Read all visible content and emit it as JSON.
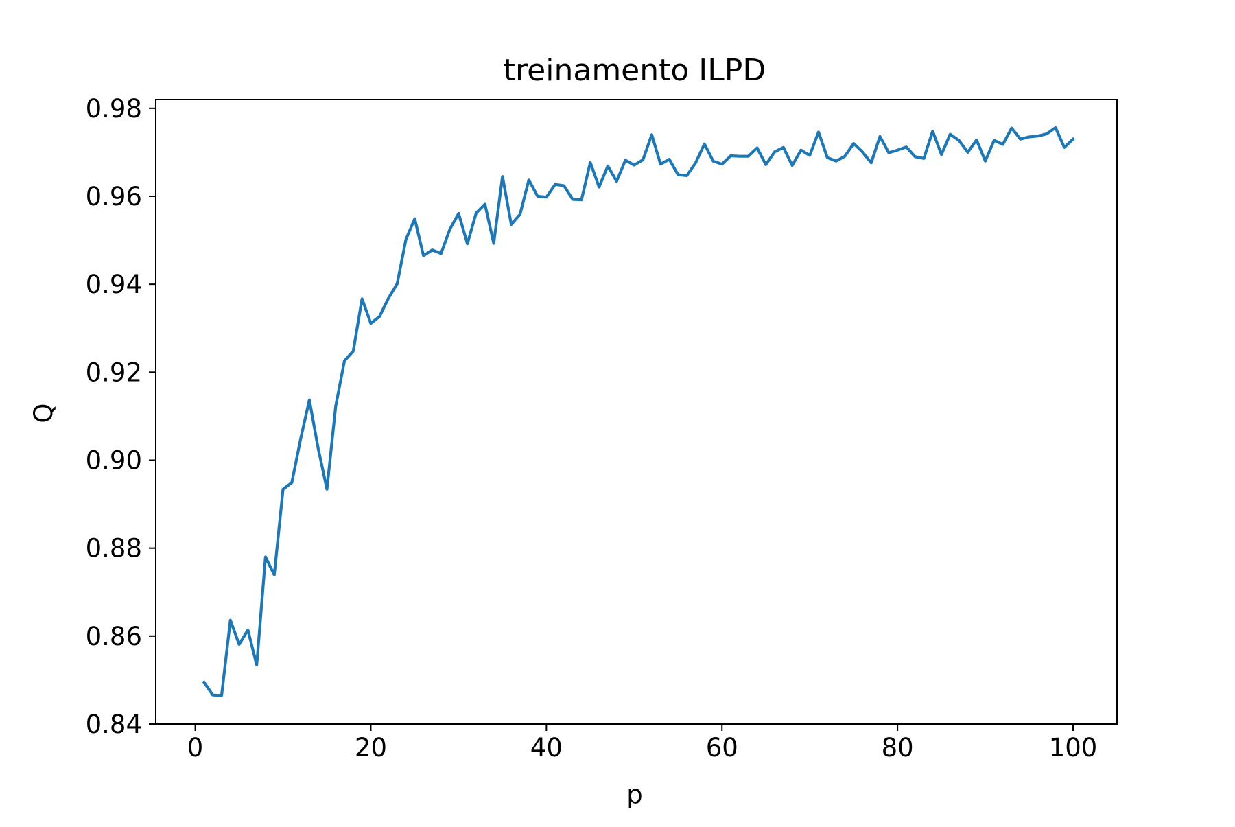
{
  "chart_data": {
    "type": "line",
    "title": "treinamento ILPD",
    "xlabel": "p",
    "ylabel": "Q",
    "xlim": [
      -4.5,
      105
    ],
    "ylim": [
      0.84,
      0.982
    ],
    "xticks": [
      0,
      20,
      40,
      60,
      80,
      100
    ],
    "xtick_labels": [
      "0",
      "20",
      "40",
      "60",
      "80",
      "100"
    ],
    "yticks": [
      0.84,
      0.86,
      0.88,
      0.9,
      0.92,
      0.94,
      0.96,
      0.98
    ],
    "ytick_labels": [
      "0.84",
      "0.86",
      "0.88",
      "0.90",
      "0.92",
      "0.94",
      "0.96",
      "0.98"
    ],
    "grid": false,
    "series": [
      {
        "color": "#1f77b4",
        "x": [
          1,
          2,
          3,
          4,
          5,
          6,
          7,
          8,
          9,
          10,
          11,
          12,
          13,
          14,
          15,
          16,
          17,
          18,
          19,
          20,
          21,
          22,
          23,
          24,
          25,
          26,
          27,
          28,
          29,
          30,
          31,
          32,
          33,
          34,
          35,
          36,
          37,
          38,
          39,
          40,
          41,
          42,
          43,
          44,
          45,
          46,
          47,
          48,
          49,
          50,
          51,
          52,
          53,
          54,
          55,
          56,
          57,
          58,
          59,
          60,
          61,
          62,
          63,
          64,
          65,
          66,
          67,
          68,
          69,
          70,
          71,
          72,
          73,
          74,
          75,
          76,
          77,
          78,
          79,
          80,
          81,
          82,
          83,
          84,
          85,
          86,
          87,
          88,
          89,
          90,
          91,
          92,
          93,
          94,
          95,
          96,
          97,
          98,
          99,
          100
        ],
        "y": [
          0.8495,
          0.8466,
          0.8465,
          0.8636,
          0.8581,
          0.8614,
          0.8534,
          0.878,
          0.8739,
          0.8934,
          0.8949,
          0.9048,
          0.9137,
          0.9027,
          0.8934,
          0.9123,
          0.9226,
          0.9248,
          0.9367,
          0.9311,
          0.9327,
          0.9368,
          0.9401,
          0.9502,
          0.9549,
          0.9465,
          0.9478,
          0.947,
          0.9525,
          0.9561,
          0.9492,
          0.9562,
          0.9582,
          0.9493,
          0.9645,
          0.9536,
          0.9559,
          0.9637,
          0.96,
          0.9598,
          0.9627,
          0.9624,
          0.9593,
          0.9592,
          0.9677,
          0.9621,
          0.9669,
          0.9634,
          0.9682,
          0.9671,
          0.9683,
          0.974,
          0.9673,
          0.9684,
          0.9649,
          0.9647,
          0.9676,
          0.9719,
          0.968,
          0.9673,
          0.9692,
          0.9691,
          0.9691,
          0.971,
          0.9672,
          0.9701,
          0.9711,
          0.967,
          0.9705,
          0.9693,
          0.9746,
          0.9688,
          0.968,
          0.9691,
          0.972,
          0.9701,
          0.9676,
          0.9736,
          0.9699,
          0.9705,
          0.9712,
          0.969,
          0.9686,
          0.9748,
          0.9695,
          0.9741,
          0.9727,
          0.97,
          0.9728,
          0.968,
          0.9727,
          0.9718,
          0.9755,
          0.973,
          0.9735,
          0.9737,
          0.9742,
          0.9756,
          0.9711,
          0.973
        ]
      }
    ]
  }
}
